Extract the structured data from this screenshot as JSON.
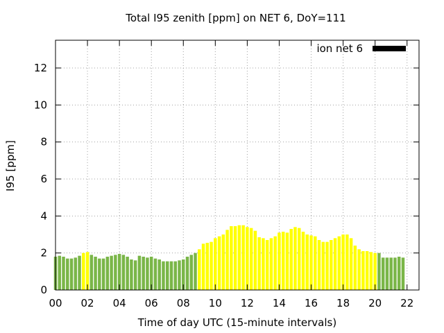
{
  "chart_data": {
    "type": "bar",
    "title": "Total I95 zenith [ppm] on NET 6, DoY=111",
    "xlabel": "Time of day UTC (15-minute intervals)",
    "ylabel": "I95 [ppm]",
    "ylim": [
      0,
      13.5
    ],
    "xlim": [
      0,
      22.75
    ],
    "interval_hours": 0.25,
    "x_ticks": [
      {
        "value": 0,
        "label": "00"
      },
      {
        "value": 2,
        "label": "02"
      },
      {
        "value": 4,
        "label": "04"
      },
      {
        "value": 6,
        "label": "06"
      },
      {
        "value": 8,
        "label": "08"
      },
      {
        "value": 10,
        "label": "10"
      },
      {
        "value": 12,
        "label": "12"
      },
      {
        "value": 14,
        "label": "14"
      },
      {
        "value": 16,
        "label": "16"
      },
      {
        "value": 18,
        "label": "18"
      },
      {
        "value": 20,
        "label": "20"
      },
      {
        "value": 22,
        "label": "22"
      }
    ],
    "y_ticks": [
      0,
      2,
      4,
      6,
      8,
      10,
      12
    ],
    "grid": true,
    "legend": {
      "label": "ion net 6",
      "position": "top-right",
      "color": "#000000"
    },
    "colors": {
      "green": "#7ab648",
      "yellow": "#ffff00"
    },
    "series": [
      {
        "name": "ion net 6",
        "values": [
          1.8,
          1.85,
          1.8,
          1.7,
          1.7,
          1.75,
          1.85,
          2.0,
          2.05,
          1.9,
          1.8,
          1.7,
          1.7,
          1.8,
          1.85,
          1.9,
          1.95,
          1.9,
          1.8,
          1.65,
          1.6,
          1.85,
          1.8,
          1.75,
          1.8,
          1.7,
          1.65,
          1.55,
          1.55,
          1.55,
          1.55,
          1.6,
          1.65,
          1.8,
          1.9,
          2.0,
          2.2,
          2.5,
          2.55,
          2.6,
          2.8,
          2.9,
          3.0,
          3.25,
          3.45,
          3.45,
          3.5,
          3.5,
          3.4,
          3.35,
          3.2,
          2.85,
          2.8,
          2.7,
          2.8,
          2.9,
          3.1,
          3.15,
          3.1,
          3.3,
          3.4,
          3.35,
          3.15,
          3.0,
          2.95,
          2.9,
          2.7,
          2.6,
          2.6,
          2.7,
          2.8,
          2.9,
          3.0,
          3.0,
          2.8,
          2.4,
          2.2,
          2.1,
          2.1,
          2.05,
          2.0,
          2.0,
          1.75,
          1.75,
          1.75,
          1.75,
          1.8,
          1.75
        ],
        "colors": [
          "green",
          "green",
          "green",
          "green",
          "green",
          "green",
          "green",
          "yellow",
          "yellow",
          "green",
          "green",
          "green",
          "green",
          "green",
          "green",
          "green",
          "green",
          "green",
          "green",
          "green",
          "green",
          "green",
          "green",
          "green",
          "green",
          "green",
          "green",
          "green",
          "green",
          "green",
          "green",
          "green",
          "green",
          "green",
          "green",
          "green",
          "yellow",
          "yellow",
          "yellow",
          "yellow",
          "yellow",
          "yellow",
          "yellow",
          "yellow",
          "yellow",
          "yellow",
          "yellow",
          "yellow",
          "yellow",
          "yellow",
          "yellow",
          "yellow",
          "yellow",
          "yellow",
          "yellow",
          "yellow",
          "yellow",
          "yellow",
          "yellow",
          "yellow",
          "yellow",
          "yellow",
          "yellow",
          "yellow",
          "yellow",
          "yellow",
          "yellow",
          "yellow",
          "yellow",
          "yellow",
          "yellow",
          "yellow",
          "yellow",
          "yellow",
          "yellow",
          "yellow",
          "yellow",
          "yellow",
          "yellow",
          "yellow",
          "yellow",
          "green",
          "green",
          "green",
          "green",
          "green",
          "green",
          "green"
        ]
      }
    ]
  }
}
